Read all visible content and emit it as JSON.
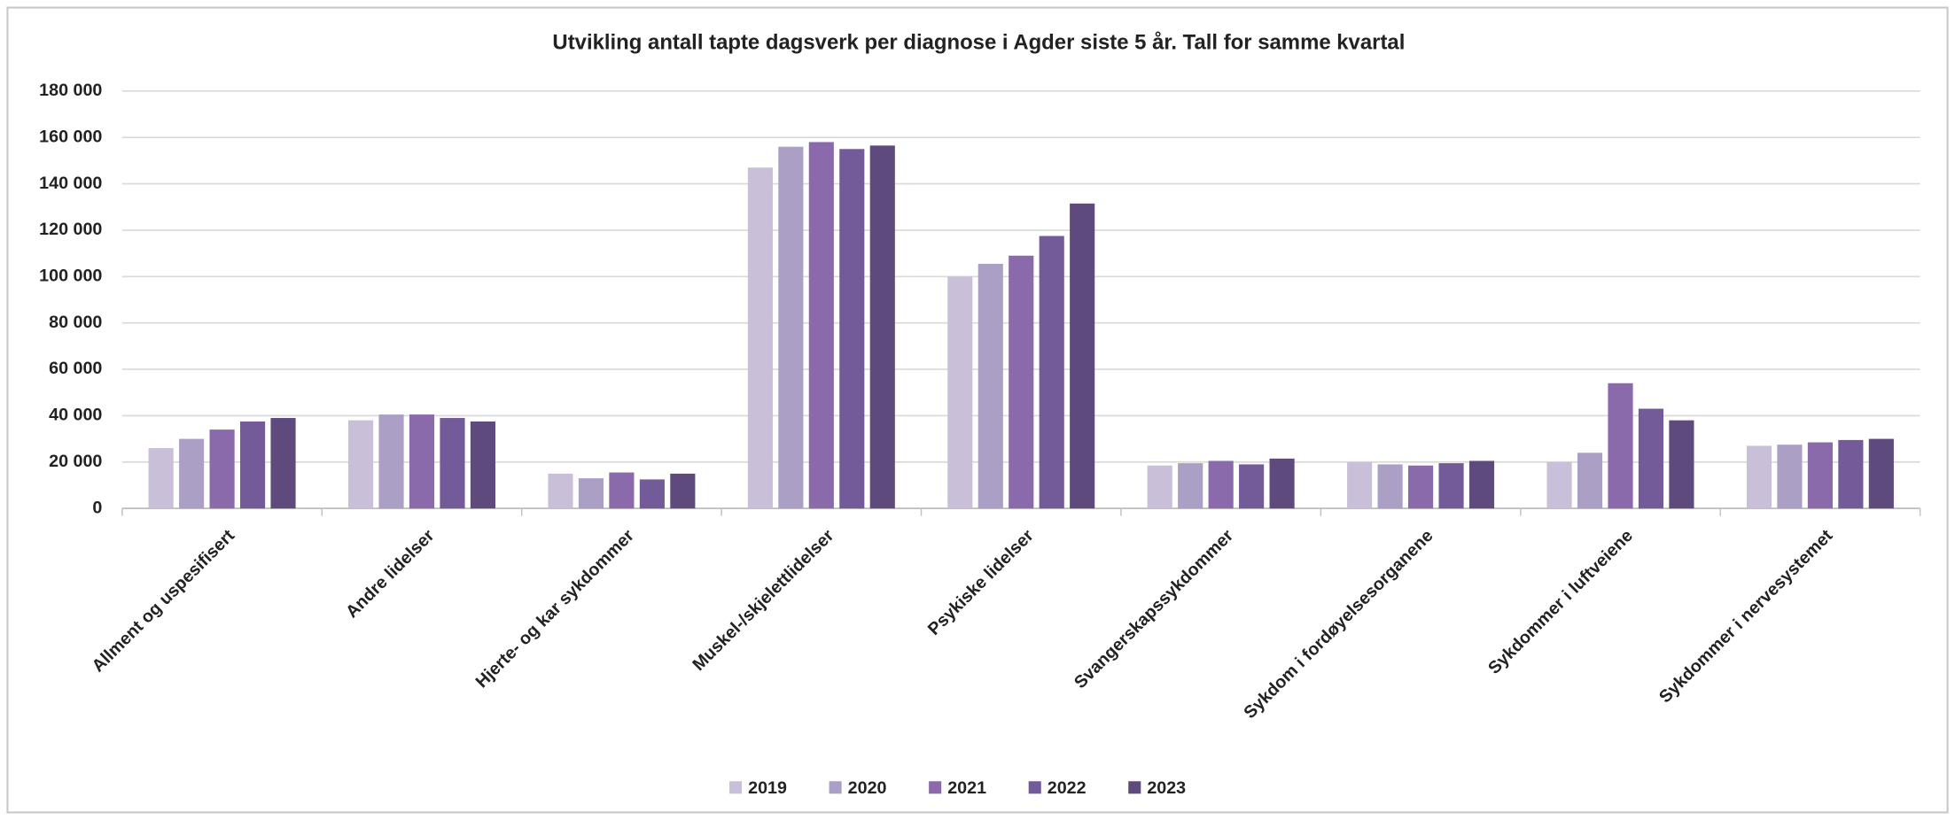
{
  "chart_data": {
    "type": "bar",
    "title": "Utvikling antall tapte dagsverk per diagnose i Agder siste 5 år. Tall for samme kvartal",
    "categories": [
      "Allment og uspesifisert",
      "Andre lidelser",
      "Hjerte- og kar sykdommer",
      "Muskel-/skjelettlidelser",
      "Psykiske lidelser",
      "Svangerskapssykdommer",
      "Sykdom i fordøyelsesorganene",
      "Sykdommer i luftveiene",
      "Sykdommer i nervesystemet"
    ],
    "series": [
      {
        "name": "2019",
        "color": "#c9bfd8",
        "values": [
          26000,
          38000,
          15000,
          147000,
          100000,
          18500,
          20000,
          20000,
          27000
        ]
      },
      {
        "name": "2020",
        "color": "#ab9fc6",
        "values": [
          30000,
          40500,
          13000,
          156000,
          105500,
          19500,
          19000,
          24000,
          27500
        ]
      },
      {
        "name": "2021",
        "color": "#8a6aab",
        "values": [
          34000,
          40500,
          15500,
          158000,
          109000,
          20500,
          18500,
          54000,
          28500
        ]
      },
      {
        "name": "2022",
        "color": "#735a98",
        "values": [
          37500,
          39000,
          12500,
          155000,
          117500,
          19000,
          19500,
          43000,
          29500
        ]
      },
      {
        "name": "2023",
        "color": "#5f4a7e",
        "values": [
          39000,
          37500,
          15000,
          156500,
          131500,
          21500,
          20500,
          38000,
          30000
        ]
      }
    ],
    "ylim": [
      0,
      180000
    ],
    "yticks": [
      0,
      {
        "value": 20000,
        "label": "20 000"
      },
      {
        "value": 40000,
        "label": "40 000"
      },
      {
        "value": 60000,
        "label": "60 000"
      },
      {
        "value": 80000,
        "label": "80 000"
      },
      {
        "value": 100000,
        "label": "100 000"
      },
      {
        "value": 120000,
        "label": "120 000"
      },
      {
        "value": 140000,
        "label": "140 000"
      },
      {
        "value": 160000,
        "label": "160 000"
      },
      {
        "value": 180000,
        "label": "180 000"
      }
    ],
    "grid": true,
    "legend": "bottom"
  }
}
